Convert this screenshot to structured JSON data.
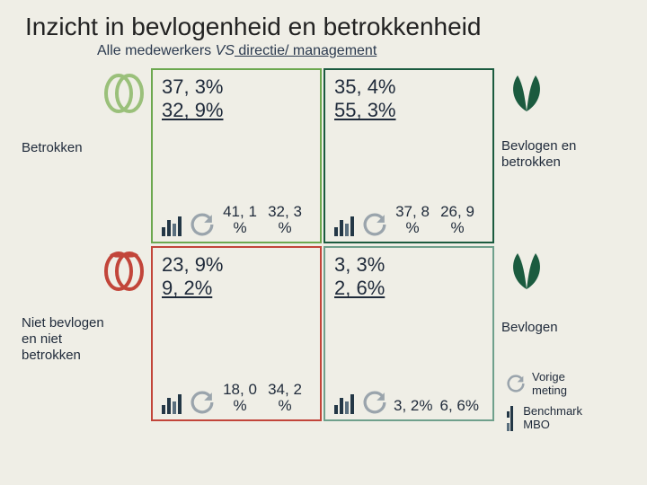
{
  "title": "Inzicht in bevlogenheid en betrokkenheid",
  "subtitle_plain": "Alle medewerkers ",
  "subtitle_vs": "VS",
  "subtitle_u": " directie/ management",
  "colors": {
    "bg": "#efeee6",
    "text": "#1f2a3a",
    "tl_border": "#6ca84f",
    "tr_border": "#1b5b3f",
    "bl_border": "#c2453a",
    "br_border": "#6fa08c",
    "bar_dark": "#233746",
    "bar_mid": "#5a6f7e",
    "bar_light": "#b9c3cb",
    "loop": "#9aa4ac",
    "icon_tl": "#9ac07a",
    "icon_tr": "#1b5b3f",
    "icon_bl": "#c2453a",
    "icon_br": "#1b5b3f"
  },
  "quadrants": {
    "tl": {
      "label": "Betrokken",
      "main_top": "37, 3%",
      "main_bot": "32, 9%",
      "sub_left": "41, 1",
      "sub_right": "32, 3"
    },
    "tr": {
      "label_l1": "Bevlogen en",
      "label_l2": "betrokken",
      "main_top": "35, 4%",
      "main_bot": "55, 3%",
      "sub_left": "37, 8",
      "sub_right": "26, 9"
    },
    "bl": {
      "label_l1": "Niet bevlogen",
      "label_l2": "en niet",
      "label_l3": "betrokken",
      "main_top": "23, 9%",
      "main_bot": "9, 2%",
      "sub_left": "18, 0",
      "sub_right": "34, 2"
    },
    "br": {
      "label": "Bevlogen",
      "main_top": "3, 3%",
      "main_bot": "2, 6%",
      "sub_left": "3, 2%",
      "sub_right": "6, 6%"
    }
  },
  "pct_suffix": "%",
  "legend": {
    "prev": "Vorige meting",
    "bench": "Benchmark MBO"
  },
  "bar_heights": [
    10,
    18,
    14,
    22
  ]
}
